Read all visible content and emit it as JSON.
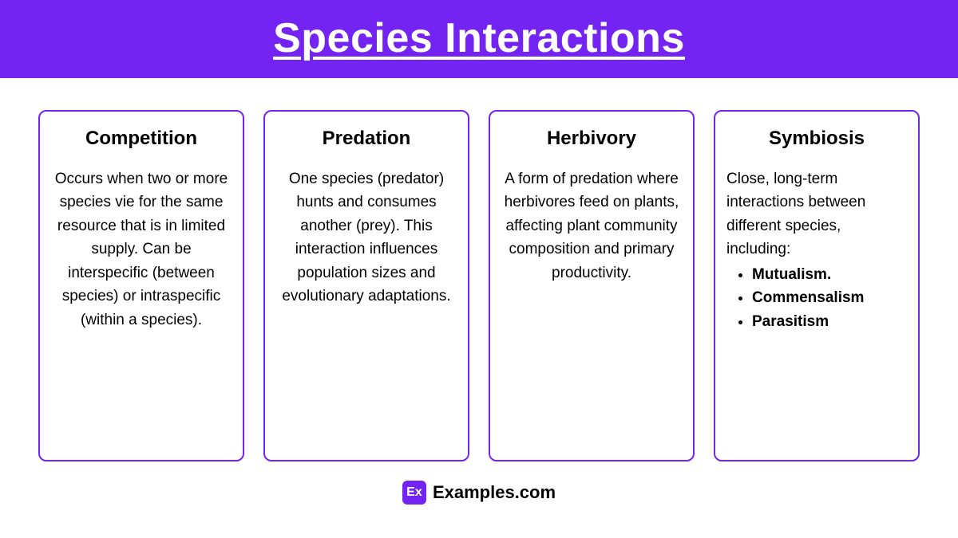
{
  "colors": {
    "header_bg": "#7424f2",
    "header_text": "#ffffff",
    "card_border": "#7424f2",
    "logo_bg": "#7424f2",
    "text": "#000000"
  },
  "title": {
    "text": "Species Interactions",
    "fontsize": 52
  },
  "cards": [
    {
      "title": "Competition",
      "body": "Occurs when two or more species vie for the same resource that is in limited supply. Can be interspecific (between species) or intraspecific (within a species).",
      "title_fontsize": 24,
      "body_fontsize": 19
    },
    {
      "title": "Predation",
      "body": "One species (predator) hunts and consumes another (prey). This interaction influences population sizes and evolutionary adaptations.",
      "title_fontsize": 24,
      "body_fontsize": 19
    },
    {
      "title": "Herbivory",
      "body": "A form of predation where herbivores feed on plants, affecting plant community composition and primary productivity.",
      "title_fontsize": 24,
      "body_fontsize": 19
    },
    {
      "title": "Symbiosis",
      "intro": "Close, long-term interactions between different species, including:",
      "bullets": [
        "Mutualism.",
        "Commensalism",
        "Parasitism"
      ],
      "title_fontsize": 24,
      "body_fontsize": 19
    }
  ],
  "footer": {
    "logo_text": "Ex",
    "logo_size": 30,
    "logo_fontsize": 16,
    "site_text": "Examples.com",
    "site_fontsize": 22
  }
}
